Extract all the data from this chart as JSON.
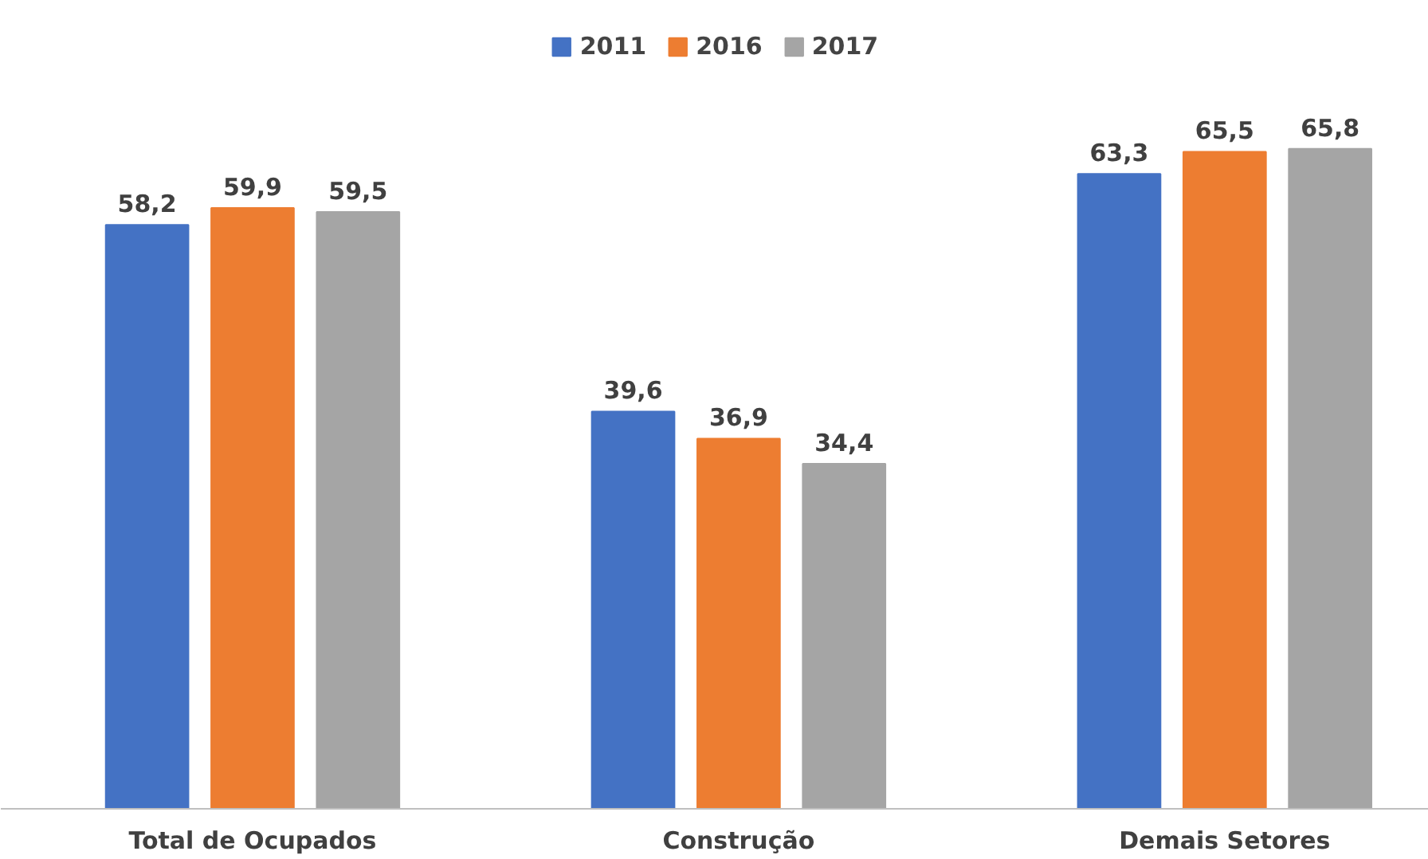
{
  "chart_data": {
    "type": "bar",
    "categories": [
      "Total de Ocupados",
      "Construção",
      "Demais Setores"
    ],
    "series": [
      {
        "name": "2011",
        "color": "#4472c4",
        "values": [
          58.2,
          39.6,
          63.3
        ],
        "value_labels": [
          "58,2",
          "39,6",
          "63,3"
        ]
      },
      {
        "name": "2016",
        "color": "#ed7d31",
        "values": [
          59.9,
          36.9,
          65.5
        ],
        "value_labels": [
          "59,9",
          "36,9",
          "65,5"
        ]
      },
      {
        "name": "2017",
        "color": "#a5a5a5",
        "values": [
          59.5,
          34.4,
          65.8
        ],
        "value_labels": [
          "59,5",
          "34,4",
          "65,8"
        ]
      }
    ],
    "legend": "top"
  }
}
